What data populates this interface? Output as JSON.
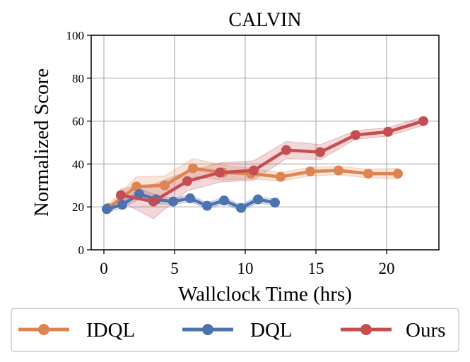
{
  "chart_data": {
    "type": "line",
    "title": "CALVIN",
    "xlabel": "Wallclock Time (hrs)",
    "ylabel": "Normalized Score",
    "xlim": [
      -0.9,
      23.7
    ],
    "ylim": [
      0,
      100
    ],
    "xticks": [
      0,
      5,
      10,
      15,
      20
    ],
    "yticks": [
      0,
      20,
      40,
      60,
      80,
      100
    ],
    "grid": true,
    "legend_position": "bottom",
    "series": [
      {
        "name": "IDQL",
        "color": "#DD8452",
        "x": [
          0.3,
          2.3,
          4.3,
          6.3,
          8.4,
          10.4,
          12.5,
          14.6,
          16.6,
          18.7,
          20.8
        ],
        "y": [
          19.5,
          29.5,
          30.0,
          38.0,
          36.0,
          35.5,
          34.0,
          36.5,
          37.0,
          35.5,
          35.5
        ],
        "lower": [
          18.0,
          25.5,
          26.0,
          34.0,
          32.5,
          33.0,
          32.0,
          34.5,
          35.0,
          33.5,
          33.0
        ],
        "upper": [
          21.0,
          34.0,
          34.5,
          42.5,
          39.5,
          38.0,
          36.0,
          38.5,
          39.0,
          37.5,
          38.0
        ]
      },
      {
        "name": "DQL",
        "color": "#4C72B0",
        "x": [
          0.2,
          1.3,
          2.5,
          3.7,
          4.9,
          6.1,
          7.3,
          8.5,
          9.7,
          10.9,
          12.1
        ],
        "y": [
          19.0,
          21.0,
          26.0,
          23.5,
          22.5,
          24.0,
          20.5,
          23.0,
          19.5,
          23.5,
          22.0
        ],
        "lower": [
          17.5,
          19.5,
          23.5,
          21.5,
          21.0,
          22.5,
          19.0,
          21.5,
          18.0,
          22.0,
          20.5
        ],
        "upper": [
          20.5,
          22.5,
          28.5,
          25.5,
          24.0,
          25.5,
          22.0,
          24.5,
          21.0,
          25.0,
          23.5
        ]
      },
      {
        "name": "Ours",
        "color": "#C44E52",
        "x": [
          1.2,
          3.5,
          5.9,
          8.2,
          10.6,
          12.9,
          15.3,
          17.8,
          20.1,
          22.6
        ],
        "y": [
          25.5,
          22.5,
          32.0,
          36.0,
          37.0,
          46.5,
          45.5,
          53.5,
          55.0,
          60.0
        ],
        "lower": [
          22.5,
          14.5,
          27.5,
          31.5,
          32.5,
          42.5,
          42.0,
          51.5,
          53.0,
          58.0
        ],
        "upper": [
          28.5,
          30.5,
          36.5,
          40.5,
          41.5,
          50.5,
          49.0,
          55.5,
          57.0,
          62.0
        ]
      }
    ]
  }
}
